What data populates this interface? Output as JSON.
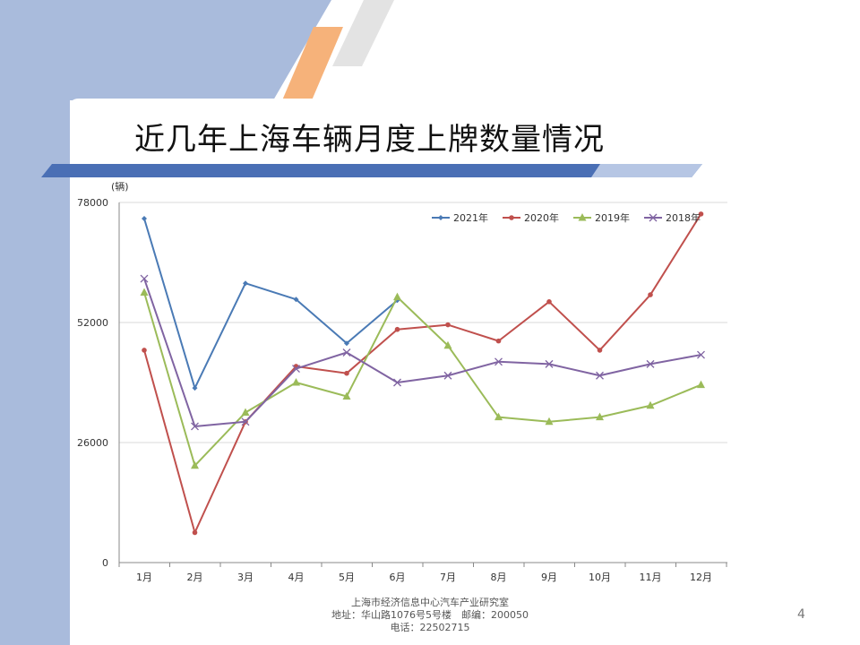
{
  "slide": {
    "title": "近几年上海车辆月度上牌数量情况",
    "footer": {
      "line1": "上海市经济信息中心汽车产业研究室",
      "line2": "地址：华山路1076号5号楼　邮编：200050",
      "line3": "电话：22502715"
    },
    "page_number": "4"
  },
  "colors": {
    "bg_blue": "#a9bbdc",
    "bar_blue": "#4a6fb5",
    "bar_light": "#b6c6e4",
    "accent_orange": "#f6b27a",
    "stripe_light": "#e3e3e3"
  },
  "chart_data": {
    "type": "line",
    "ylabel": "(辆)",
    "ylim": [
      0,
      78000
    ],
    "yticks": [
      0,
      26000,
      52000,
      78000
    ],
    "ytick_labels": [
      "0",
      "26000",
      "52000",
      "78000"
    ],
    "categories": [
      "1月",
      "2月",
      "3月",
      "4月",
      "5月",
      "6月",
      "7月",
      "8月",
      "9月",
      "10月",
      "11月",
      "12月"
    ],
    "grid": true,
    "legend_position": "top-right",
    "series": [
      {
        "name": "2021年",
        "color": "#4a7ab5",
        "marker": "diamond",
        "values": [
          74500,
          37800,
          60500,
          57000,
          47500,
          56800,
          null,
          null,
          null,
          null,
          null,
          null
        ]
      },
      {
        "name": "2020年",
        "color": "#c0504d",
        "marker": "circle",
        "values": [
          46000,
          6500,
          30500,
          42500,
          41000,
          50500,
          51500,
          48000,
          56500,
          46000,
          58000,
          75500
        ]
      },
      {
        "name": "2019年",
        "color": "#9bbb59",
        "marker": "triangle",
        "values": [
          58500,
          21000,
          32500,
          39000,
          36000,
          57500,
          47000,
          31500,
          30500,
          31500,
          34000,
          38500
        ]
      },
      {
        "name": "2018年",
        "color": "#8064a2",
        "marker": "x",
        "values": [
          61500,
          29500,
          30500,
          42000,
          45500,
          39000,
          40500,
          43500,
          43000,
          40500,
          43000,
          45000
        ]
      }
    ]
  }
}
